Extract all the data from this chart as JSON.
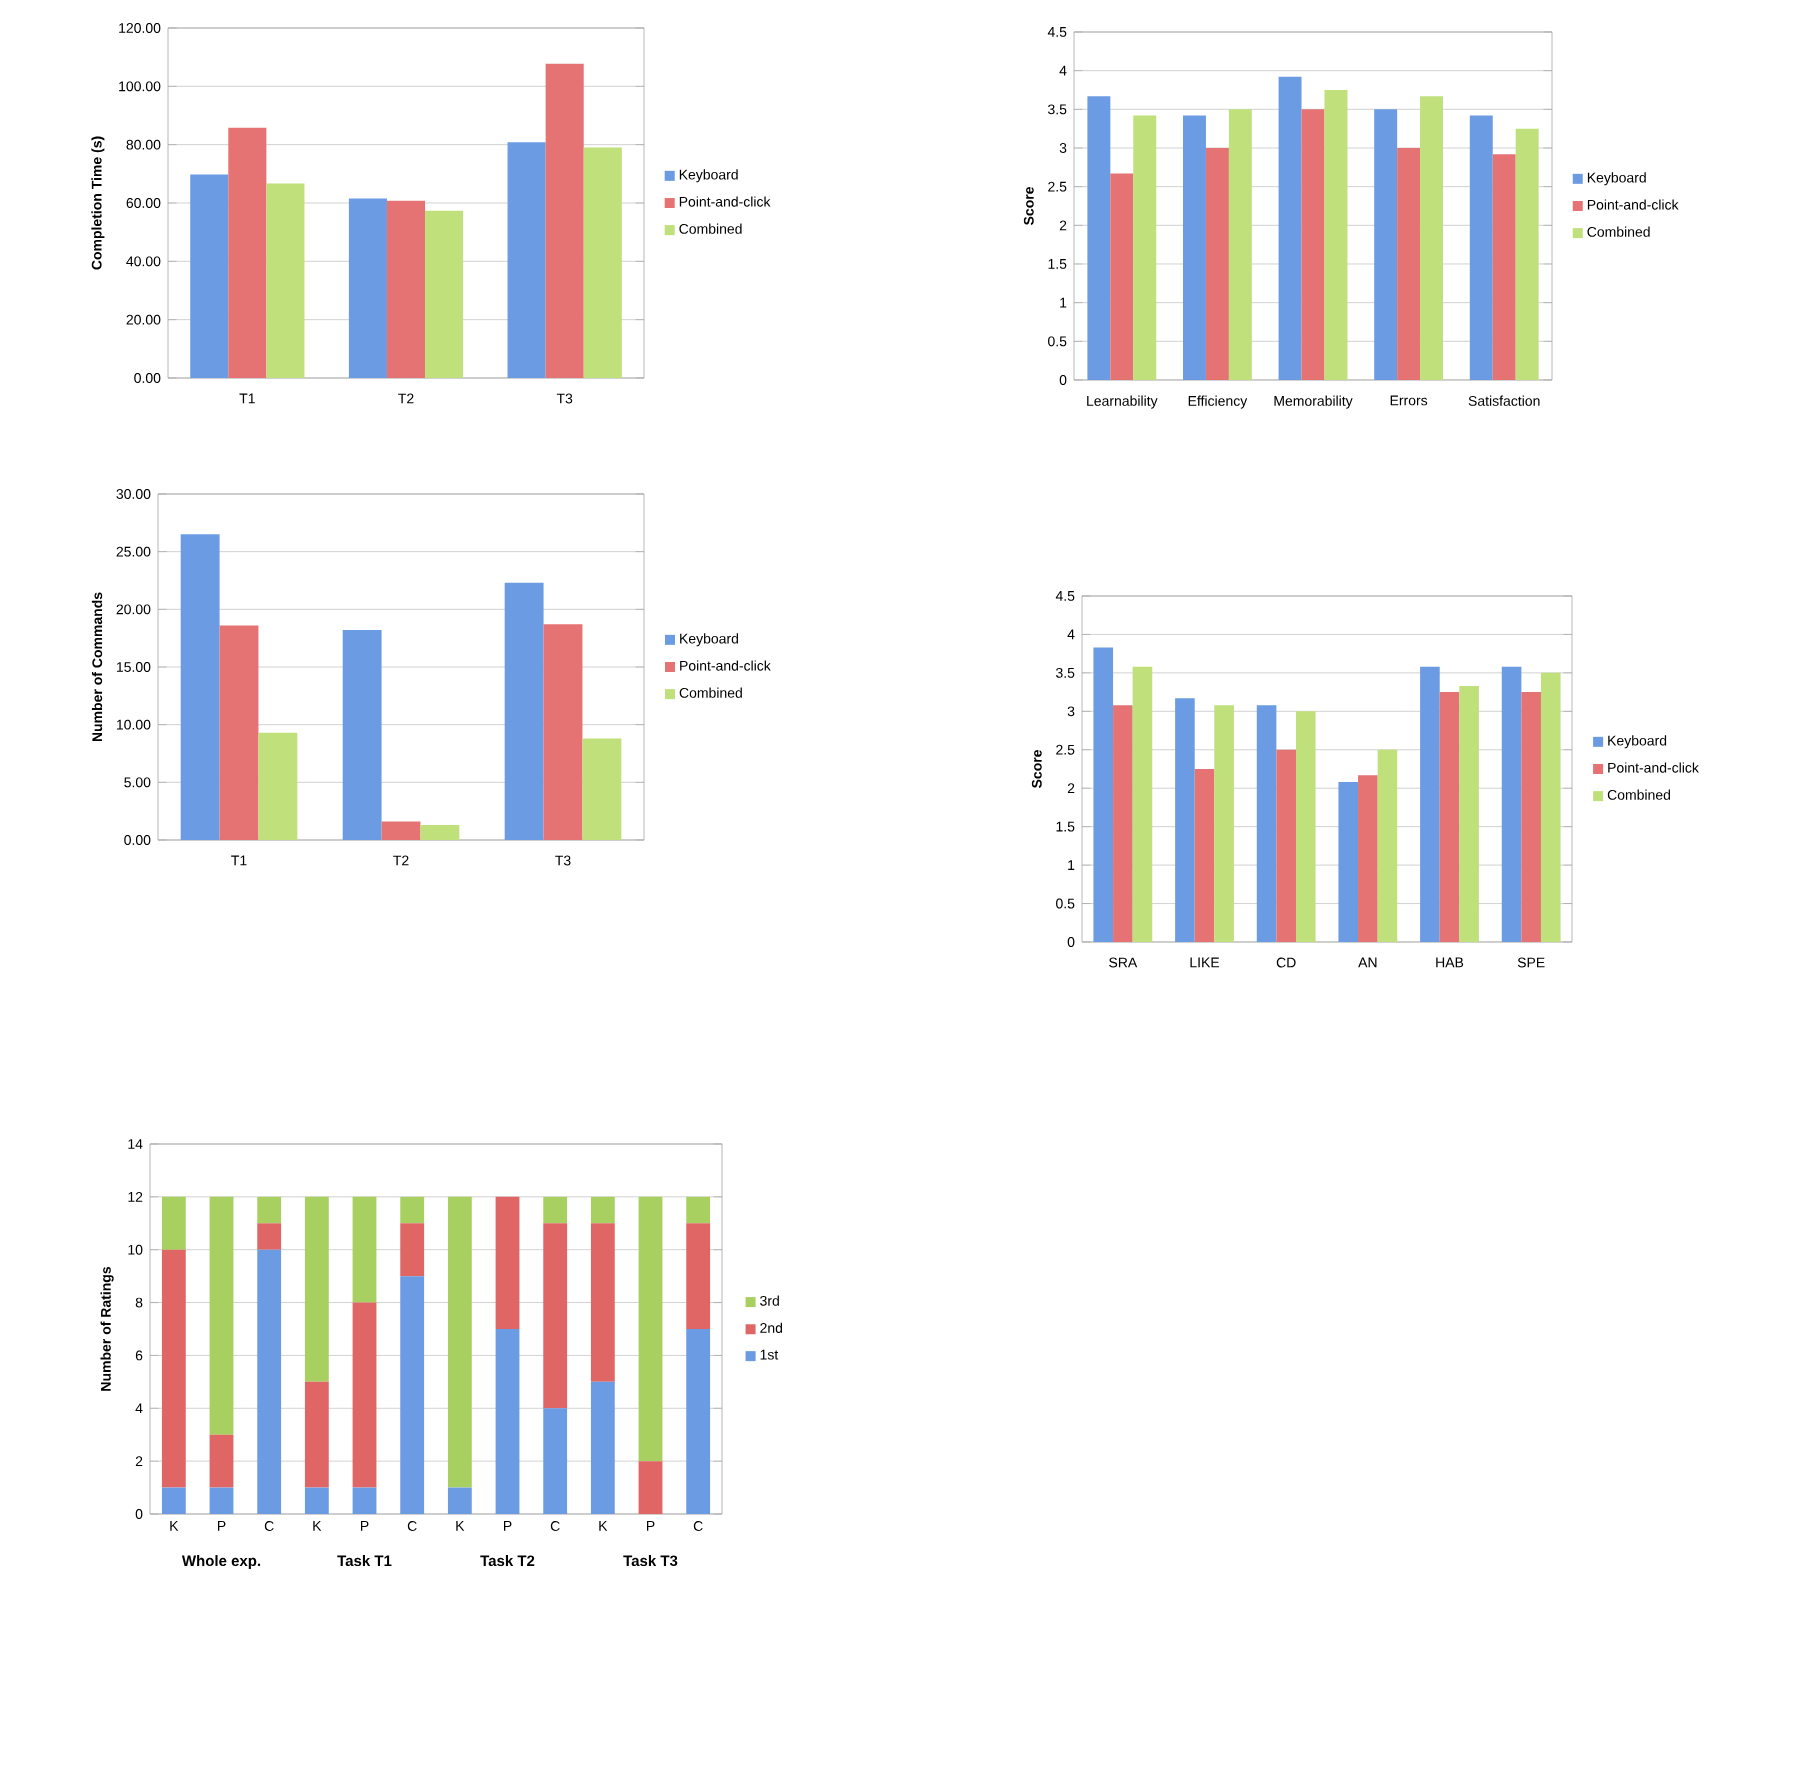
{
  "chart_data": [
    {
      "type": "bar",
      "ylabel": "Completion Time (s)",
      "categories": [
        "T1",
        "T2",
        "T3"
      ],
      "ylim": [
        0,
        120
      ],
      "yticks": [
        {
          "value": 0,
          "label": "0.00"
        },
        {
          "value": 20,
          "label": "20.00"
        },
        {
          "value": 40,
          "label": "40.00"
        },
        {
          "value": 60,
          "label": "60.00"
        },
        {
          "value": 80,
          "label": "80.00"
        },
        {
          "value": 100,
          "label": "100.00"
        },
        {
          "value": 120,
          "label": "120.00"
        }
      ],
      "series": [
        {
          "name": "Keyboard",
          "color": "#6a9be3",
          "values": [
            69.8,
            61.5,
            80.8
          ]
        },
        {
          "name": "Point-and-click",
          "color": "#e57373",
          "values": [
            85.8,
            60.8,
            107.7
          ]
        },
        {
          "name": "Combined",
          "color": "#bfe07a",
          "values": [
            66.7,
            57.3,
            79.0
          ]
        }
      ],
      "grid": "y",
      "legend": "right"
    },
    {
      "type": "bar",
      "ylabel": "Score",
      "categories": [
        "Learnability",
        "Efficiency",
        "Memorability",
        "Errors",
        "Satisfaction"
      ],
      "ylim": [
        0,
        4.5
      ],
      "yticks": [
        0,
        0.5,
        1,
        1.5,
        2,
        2.5,
        3,
        3.5,
        4,
        4.5
      ],
      "series": [
        {
          "name": "Keyboard",
          "color": "#6a9be3",
          "values": [
            3.67,
            3.42,
            3.92,
            3.5,
            3.42
          ]
        },
        {
          "name": "Point-and-click",
          "color": "#e57373",
          "values": [
            2.67,
            3.0,
            3.5,
            3.0,
            2.92
          ]
        },
        {
          "name": "Combined",
          "color": "#bfe07a",
          "values": [
            3.42,
            3.5,
            3.75,
            3.67,
            3.25
          ]
        }
      ],
      "grid": "y",
      "legend": "right"
    },
    {
      "type": "bar",
      "ylabel": "Number of Commands",
      "categories": [
        "T1",
        "T2",
        "T3"
      ],
      "ylim": [
        0,
        30
      ],
      "yticks": [
        {
          "value": 0,
          "label": "0.00"
        },
        {
          "value": 5,
          "label": "5.00"
        },
        {
          "value": 10,
          "label": "10.00"
        },
        {
          "value": 15,
          "label": "15.00"
        },
        {
          "value": 20,
          "label": "20.00"
        },
        {
          "value": 25,
          "label": "25.00"
        },
        {
          "value": 30,
          "label": "30.00"
        }
      ],
      "series": [
        {
          "name": "Keyboard",
          "color": "#6a9be3",
          "values": [
            26.5,
            18.2,
            22.3
          ]
        },
        {
          "name": "Point-and-click",
          "color": "#e57373",
          "values": [
            18.6,
            1.6,
            18.7
          ]
        },
        {
          "name": "Combined",
          "color": "#bfe07a",
          "values": [
            9.3,
            1.3,
            8.8
          ]
        }
      ],
      "grid": "y",
      "legend": "right"
    },
    {
      "type": "bar",
      "ylabel": "Score",
      "categories": [
        "SRA",
        "LIKE",
        "CD",
        "AN",
        "HAB",
        "SPE"
      ],
      "ylim": [
        0,
        4.5
      ],
      "yticks": [
        0,
        0.5,
        1,
        1.5,
        2,
        2.5,
        3,
        3.5,
        4,
        4.5
      ],
      "series": [
        {
          "name": "Keyboard",
          "color": "#6a9be3",
          "values": [
            3.83,
            3.17,
            3.08,
            2.08,
            3.58,
            3.58
          ]
        },
        {
          "name": "Point-and-click",
          "color": "#e57373",
          "values": [
            3.08,
            2.25,
            2.5,
            2.17,
            3.25,
            3.25
          ]
        },
        {
          "name": "Combined",
          "color": "#bfe07a",
          "values": [
            3.58,
            3.08,
            3.0,
            2.5,
            3.33,
            3.5
          ]
        }
      ],
      "grid": "y",
      "legend": "right"
    },
    {
      "type": "bar",
      "stacked": true,
      "ylabel": "Number of Ratings",
      "categories": [
        "K",
        "P",
        "C",
        "K",
        "P",
        "C",
        "K",
        "P",
        "C",
        "K",
        "P",
        "C"
      ],
      "ylim": [
        0,
        14
      ],
      "yticks": [
        0,
        2,
        4,
        6,
        8,
        10,
        12,
        14
      ],
      "series": [
        {
          "name": "1st",
          "color": "#6a9be3",
          "values": [
            1,
            1,
            10,
            1,
            1,
            9,
            1,
            7,
            4,
            5,
            0,
            7
          ]
        },
        {
          "name": "2nd",
          "color": "#e06666",
          "values": [
            9,
            2,
            1,
            4,
            7,
            2,
            0,
            5,
            7,
            6,
            2,
            4
          ]
        },
        {
          "name": "3rd",
          "color": "#a8d060",
          "values": [
            2,
            9,
            1,
            7,
            4,
            1,
            11,
            0,
            1,
            1,
            10,
            1
          ]
        }
      ],
      "grid": "y",
      "legend": "right",
      "annotations": [
        "Whole exp.",
        "Task T1",
        "Task T2",
        "Task T3"
      ]
    }
  ]
}
